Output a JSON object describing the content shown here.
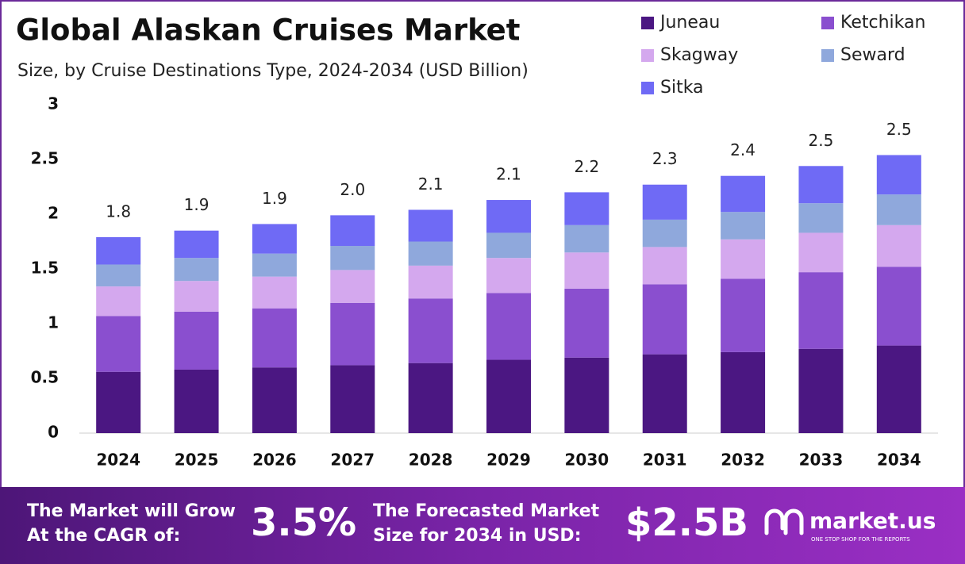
{
  "chart_data": {
    "type": "stacked_bar",
    "title": "Global Alaskan Cruises Market",
    "subtitle": "Size, by Cruise Destinations Type, 2024-2034 (USD Billion)",
    "categories": [
      "2024",
      "2025",
      "2026",
      "2027",
      "2028",
      "2029",
      "2030",
      "2031",
      "2032",
      "2033",
      "2034"
    ],
    "series": [
      {
        "name": "Juneau",
        "color": "#4b1782",
        "values": [
          0.56,
          0.58,
          0.6,
          0.62,
          0.64,
          0.67,
          0.69,
          0.72,
          0.74,
          0.77,
          0.8
        ]
      },
      {
        "name": "Ketchikan",
        "color": "#8a4fcf",
        "values": [
          0.51,
          0.53,
          0.54,
          0.57,
          0.59,
          0.61,
          0.63,
          0.64,
          0.67,
          0.7,
          0.72
        ]
      },
      {
        "name": "Skagway",
        "color": "#d4a8ee",
        "values": [
          0.27,
          0.28,
          0.29,
          0.3,
          0.3,
          0.32,
          0.33,
          0.34,
          0.36,
          0.36,
          0.38
        ]
      },
      {
        "name": "Seward",
        "color": "#8fa8dc",
        "values": [
          0.2,
          0.21,
          0.21,
          0.22,
          0.22,
          0.23,
          0.25,
          0.25,
          0.25,
          0.27,
          0.28
        ]
      },
      {
        "name": "Sitka",
        "color": "#6f6af5",
        "values": [
          0.25,
          0.25,
          0.27,
          0.28,
          0.29,
          0.3,
          0.3,
          0.32,
          0.33,
          0.34,
          0.36
        ]
      }
    ],
    "totals": [
      "1.8",
      "1.9",
      "1.9",
      "2.0",
      "2.1",
      "2.1",
      "2.2",
      "2.3",
      "2.4",
      "2.5",
      "2.5"
    ],
    "ylim": [
      0,
      3
    ],
    "yticks": [
      0,
      0.5,
      1,
      1.5,
      2,
      2.5,
      3
    ],
    "legend": "top-right"
  },
  "footer": {
    "cagr_text": [
      "The Market will Grow",
      "At the CAGR of:"
    ],
    "cagr": "3.5%",
    "forecast_text": [
      "The Forecasted Market",
      "Size for 2034 in USD:"
    ],
    "forecast": "$2.5B",
    "brand": "market.us",
    "tagline": "ONE STOP SHOP FOR THE REPORTS"
  }
}
